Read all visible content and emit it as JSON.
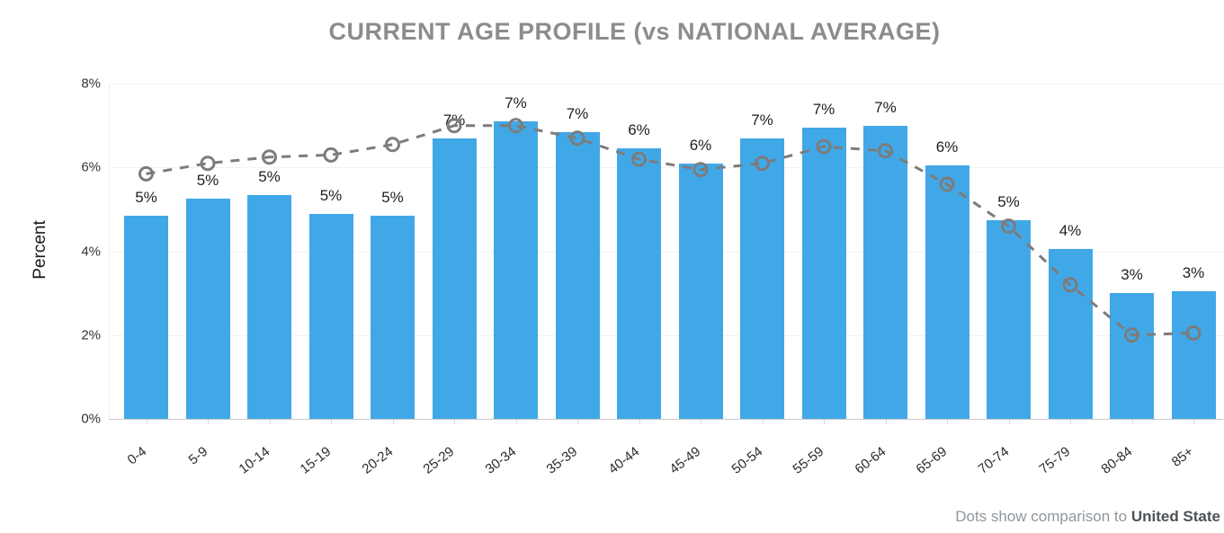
{
  "title": "CURRENT AGE PROFILE (vs NATIONAL AVERAGE)",
  "y_axis_title": "Percent",
  "footer": {
    "prefix": "Dots show comparison to ",
    "entity": "United State"
  },
  "colors": {
    "bar": "#41a8e8",
    "comparison_line": "#7c7c7c",
    "title": "#8c8c8c",
    "grid": "#f2f2f2",
    "baseline": "#c9c9c9"
  },
  "chart_data": {
    "type": "bar",
    "title": "CURRENT AGE PROFILE (vs NATIONAL AVERAGE)",
    "xlabel": "",
    "ylabel": "Percent",
    "ylim": [
      0,
      8
    ],
    "yticks": [
      "0%",
      "2%",
      "4%",
      "6%",
      "8%"
    ],
    "grid": "horizontal",
    "legend_position": "none",
    "annotation": "Dots show comparison to United State",
    "categories": [
      "0-4",
      "5-9",
      "10-14",
      "15-19",
      "20-24",
      "25-29",
      "30-34",
      "35-39",
      "40-44",
      "45-49",
      "50-54",
      "55-59",
      "60-64",
      "65-69",
      "70-74",
      "75-79",
      "80-84",
      "85+"
    ],
    "series": [
      {
        "name": "Current age profile",
        "type": "bar",
        "values": [
          4.85,
          5.25,
          5.35,
          4.9,
          4.85,
          6.7,
          7.1,
          6.85,
          6.45,
          6.1,
          6.7,
          6.95,
          7.0,
          6.05,
          4.75,
          4.05,
          3.0,
          3.05
        ],
        "labels": [
          "5%",
          "5%",
          "5%",
          "5%",
          "5%",
          "7%",
          "7%",
          "7%",
          "6%",
          "6%",
          "7%",
          "7%",
          "7%",
          "6%",
          "5%",
          "4%",
          "3%",
          "3%"
        ]
      },
      {
        "name": "National average (dots)",
        "type": "line-dots",
        "values": [
          5.85,
          6.1,
          6.25,
          6.3,
          6.55,
          7.0,
          7.0,
          6.7,
          6.2,
          5.95,
          6.1,
          6.5,
          6.4,
          5.6,
          4.6,
          3.2,
          2.0,
          2.05
        ]
      }
    ]
  }
}
